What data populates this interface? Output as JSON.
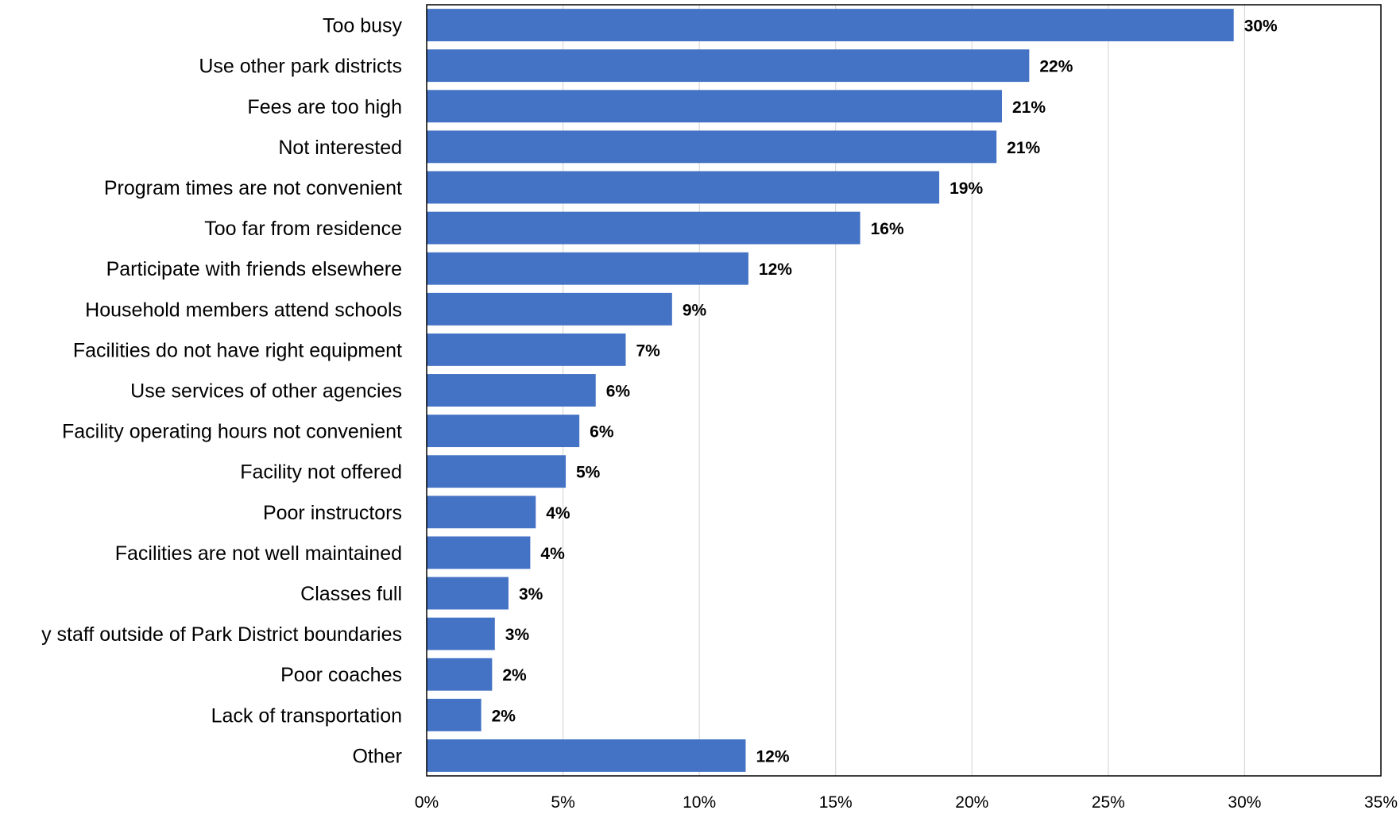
{
  "chart_data": {
    "type": "bar",
    "orientation": "horizontal",
    "categories": [
      "Too busy",
      "Use other park districts",
      "Fees are too high",
      "Not interested",
      "Program times are not convenient",
      "Too far from residence",
      "Participate with friends elsewhere",
      "Household members attend schools",
      "Facilities do not have right equipment",
      "Use services of other agencies",
      "Facility operating hours not convenient",
      "Facility not offered",
      "Poor instructors",
      "Facilities are not well maintained",
      "Classes full",
      "y staff outside of Park District boundaries",
      "Poor coaches",
      "Lack of transportation",
      "Other"
    ],
    "values": [
      29.6,
      22.1,
      21.1,
      20.9,
      18.8,
      15.9,
      11.8,
      9.0,
      7.3,
      6.2,
      5.6,
      5.1,
      4.0,
      3.8,
      3.0,
      2.5,
      2.4,
      2.0,
      11.7
    ],
    "data_labels": [
      "30%",
      "22%",
      "21%",
      "21%",
      "19%",
      "16%",
      "12%",
      "9%",
      "7%",
      "6%",
      "6%",
      "5%",
      "4%",
      "4%",
      "3%",
      "3%",
      "2%",
      "2%",
      "12%"
    ],
    "xlim": [
      0,
      35
    ],
    "x_ticks": [
      0,
      5,
      10,
      15,
      20,
      25,
      30,
      35
    ],
    "x_tick_labels": [
      "0%",
      "5%",
      "10%",
      "15%",
      "20%",
      "25%",
      "30%",
      "35%"
    ],
    "bar_color": "#4472C4",
    "grid": true,
    "grid_color": "#D9D9D9",
    "legend": false
  }
}
